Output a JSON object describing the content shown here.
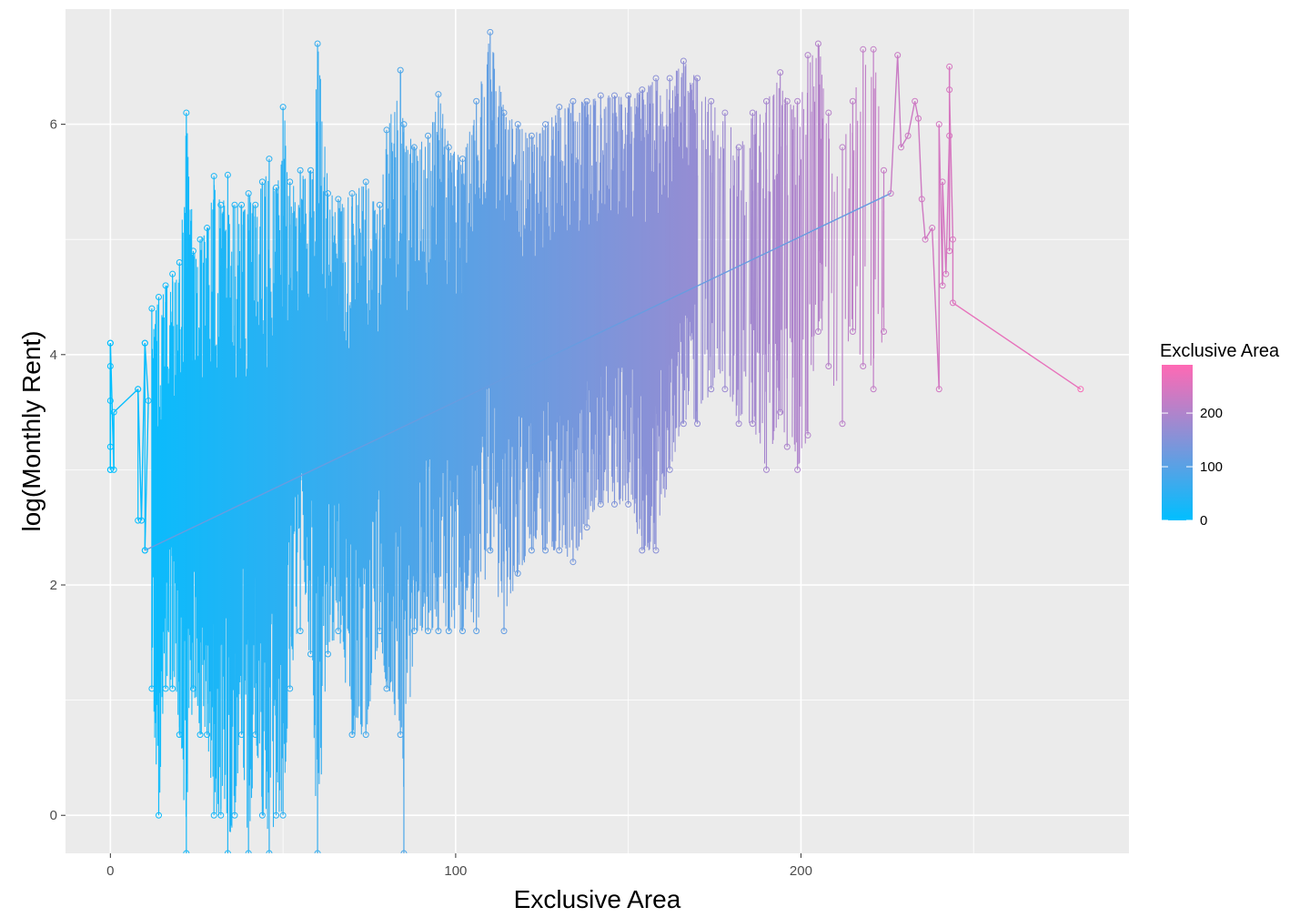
{
  "chart_data": {
    "type": "line",
    "xlabel": "Exclusive Area",
    "ylabel": "log(Monthly Rent)",
    "xlim": [
      -13,
      295
    ],
    "ylim": [
      -0.33,
      7.0
    ],
    "x_ticks": [
      0,
      100,
      200
    ],
    "x_tick_labels": [
      "0",
      "100",
      "200"
    ],
    "x_minor_ticks": [
      50,
      150,
      250
    ],
    "y_ticks": [
      0,
      2,
      4,
      6
    ],
    "y_tick_labels": [
      "0",
      "2",
      "4",
      "6"
    ],
    "y_minor_ticks": [
      1,
      3,
      5
    ],
    "grid": true,
    "panel_background": "#ebebeb",
    "gridline_color": "#ffffff",
    "color_low": "#00bfff",
    "color_high": "#ff69b4",
    "legend": {
      "title": "Exclusive Area",
      "placement": "right",
      "range": [
        0,
        290
      ],
      "breaks": [
        0,
        100,
        200
      ],
      "break_labels": [
        "0",
        "100",
        "200"
      ]
    },
    "series": [
      {
        "name": "Exclusive Area",
        "summary": [
          {
            "x": 0,
            "min": 3.0,
            "max": 4.1
          },
          {
            "x": 8,
            "min": 2.56,
            "max": 3.7
          },
          {
            "x": 10,
            "min": 2.3,
            "max": 4.1
          },
          {
            "x": 12,
            "min": 1.1,
            "max": 4.4
          },
          {
            "x": 14,
            "min": 0.0,
            "max": 4.5
          },
          {
            "x": 16,
            "min": 1.1,
            "max": 4.6
          },
          {
            "x": 18,
            "min": 1.1,
            "max": 4.7
          },
          {
            "x": 20,
            "min": 0.7,
            "max": 4.8
          },
          {
            "x": 22,
            "min": -0.33,
            "max": 6.1
          },
          {
            "x": 24,
            "min": 1.1,
            "max": 4.9
          },
          {
            "x": 26,
            "min": 0.7,
            "max": 5.0
          },
          {
            "x": 28,
            "min": 0.7,
            "max": 5.1
          },
          {
            "x": 30,
            "min": 0.0,
            "max": 5.55
          },
          {
            "x": 32,
            "min": 0.0,
            "max": 5.3
          },
          {
            "x": 34,
            "min": -0.33,
            "max": 5.56
          },
          {
            "x": 36,
            "min": 0.0,
            "max": 5.3
          },
          {
            "x": 38,
            "min": 0.7,
            "max": 5.3
          },
          {
            "x": 40,
            "min": -0.33,
            "max": 5.4
          },
          {
            "x": 42,
            "min": 0.7,
            "max": 5.3
          },
          {
            "x": 44,
            "min": 0.0,
            "max": 5.5
          },
          {
            "x": 46,
            "min": -0.33,
            "max": 5.7
          },
          {
            "x": 48,
            "min": 0.0,
            "max": 5.45
          },
          {
            "x": 50,
            "min": 0.0,
            "max": 6.15
          },
          {
            "x": 52,
            "min": 1.1,
            "max": 5.5
          },
          {
            "x": 55,
            "min": 1.6,
            "max": 5.6
          },
          {
            "x": 58,
            "min": 1.4,
            "max": 5.6
          },
          {
            "x": 60,
            "min": -0.33,
            "max": 6.7
          },
          {
            "x": 63,
            "min": 1.4,
            "max": 5.4
          },
          {
            "x": 66,
            "min": 1.6,
            "max": 5.35
          },
          {
            "x": 70,
            "min": 0.7,
            "max": 5.4
          },
          {
            "x": 74,
            "min": 0.7,
            "max": 5.5
          },
          {
            "x": 78,
            "min": 1.6,
            "max": 5.3
          },
          {
            "x": 80,
            "min": 1.1,
            "max": 5.95
          },
          {
            "x": 84,
            "min": 0.7,
            "max": 6.47
          },
          {
            "x": 85,
            "min": -0.33,
            "max": 6.0
          },
          {
            "x": 88,
            "min": 1.6,
            "max": 5.8
          },
          {
            "x": 92,
            "min": 1.6,
            "max": 5.9
          },
          {
            "x": 95,
            "min": 1.6,
            "max": 6.26
          },
          {
            "x": 98,
            "min": 1.6,
            "max": 5.8
          },
          {
            "x": 102,
            "min": 1.6,
            "max": 5.7
          },
          {
            "x": 106,
            "min": 1.6,
            "max": 6.2
          },
          {
            "x": 110,
            "min": 2.3,
            "max": 6.8
          },
          {
            "x": 114,
            "min": 1.6,
            "max": 6.1
          },
          {
            "x": 118,
            "min": 2.1,
            "max": 6.0
          },
          {
            "x": 122,
            "min": 2.3,
            "max": 5.9
          },
          {
            "x": 126,
            "min": 2.3,
            "max": 6.0
          },
          {
            "x": 130,
            "min": 2.3,
            "max": 6.15
          },
          {
            "x": 134,
            "min": 2.2,
            "max": 6.2
          },
          {
            "x": 138,
            "min": 2.5,
            "max": 6.2
          },
          {
            "x": 142,
            "min": 2.7,
            "max": 6.25
          },
          {
            "x": 146,
            "min": 2.7,
            "max": 6.25
          },
          {
            "x": 150,
            "min": 2.7,
            "max": 6.25
          },
          {
            "x": 154,
            "min": 2.3,
            "max": 6.3
          },
          {
            "x": 158,
            "min": 2.3,
            "max": 6.4
          },
          {
            "x": 162,
            "min": 3.0,
            "max": 6.4
          },
          {
            "x": 166,
            "min": 3.4,
            "max": 6.55
          },
          {
            "x": 170,
            "min": 3.4,
            "max": 6.4
          },
          {
            "x": 174,
            "min": 3.7,
            "max": 6.2
          },
          {
            "x": 178,
            "min": 3.7,
            "max": 6.1
          },
          {
            "x": 182,
            "min": 3.4,
            "max": 5.8
          },
          {
            "x": 186,
            "min": 3.4,
            "max": 6.1
          },
          {
            "x": 190,
            "min": 3.0,
            "max": 6.2
          },
          {
            "x": 194,
            "min": 3.5,
            "max": 6.45
          },
          {
            "x": 196,
            "min": 3.2,
            "max": 6.2
          },
          {
            "x": 199,
            "min": 3.0,
            "max": 6.2
          },
          {
            "x": 202,
            "min": 3.3,
            "max": 6.6
          },
          {
            "x": 205,
            "min": 4.2,
            "max": 6.7
          },
          {
            "x": 208,
            "min": 3.9,
            "max": 6.1
          },
          {
            "x": 212,
            "min": 3.4,
            "max": 5.8
          },
          {
            "x": 215,
            "min": 4.2,
            "max": 6.2
          },
          {
            "x": 218,
            "min": 3.9,
            "max": 6.65
          },
          {
            "x": 221,
            "min": 3.7,
            "max": 6.65
          },
          {
            "x": 224,
            "min": 4.2,
            "max": 5.6
          }
        ],
        "points": [
          [
            0,
            3.0
          ],
          [
            0,
            3.9
          ],
          [
            0,
            3.6
          ],
          [
            0,
            3.2
          ],
          [
            0,
            4.1
          ],
          [
            1,
            3.0
          ],
          [
            1,
            3.5
          ],
          [
            8,
            3.7
          ],
          [
            9,
            2.56
          ],
          [
            10,
            4.1
          ],
          [
            11,
            3.6
          ],
          [
            10,
            2.3
          ],
          [
            226,
            5.4
          ],
          [
            228,
            6.6
          ],
          [
            229,
            5.8
          ],
          [
            231,
            5.9
          ],
          [
            233,
            6.2
          ],
          [
            234,
            6.05
          ],
          [
            235,
            5.35
          ],
          [
            236,
            5.0
          ],
          [
            238,
            5.1
          ],
          [
            240,
            3.7
          ],
          [
            240,
            6.0
          ],
          [
            241,
            4.6
          ],
          [
            241,
            5.5
          ],
          [
            242,
            4.7
          ],
          [
            243,
            5.9
          ],
          [
            243,
            4.9
          ],
          [
            243,
            6.5
          ],
          [
            243,
            6.3
          ],
          [
            244,
            5.0
          ],
          [
            244,
            4.45
          ],
          [
            281,
            3.7
          ]
        ]
      }
    ]
  }
}
